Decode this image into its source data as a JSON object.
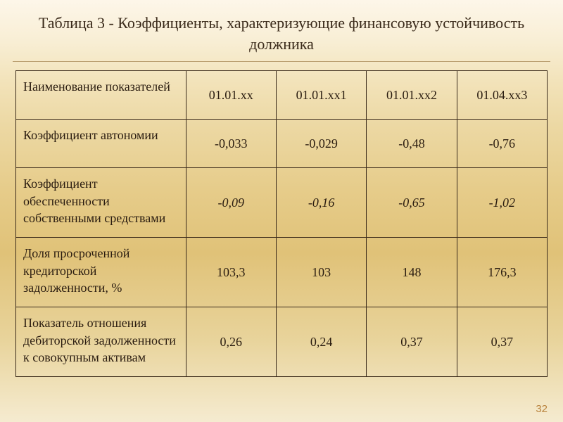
{
  "title": "Таблица 3 - Коэффициенты, характеризующие финансовую устойчивость должника",
  "page_number": "32",
  "table": {
    "columns": [
      "Наименование показателей",
      "01.01.хх",
      "01.01.хх1",
      "01.01.хх2",
      "01.04.хх3"
    ],
    "rows": [
      {
        "name": "Коэффициент автономии",
        "values": [
          "-0,033",
          "-0,029",
          "-0,48",
          "-0,76"
        ],
        "italic": false
      },
      {
        "name": "Коэффициент обеспеченности собственными средствами",
        "values": [
          "-0,09",
          "-0,16",
          "-0,65",
          "-1,02"
        ],
        "italic": true
      },
      {
        "name": "Доля просроченной кредиторской задолженности, %",
        "values": [
          "103,3",
          "103",
          "148",
          "176,3"
        ],
        "italic": false
      },
      {
        "name": "Показатель отношения дебиторской задолженности  к совокупным активам",
        "values": [
          "0,26",
          "0,24",
          "0,37",
          "0,37"
        ],
        "italic": false
      }
    ]
  },
  "style": {
    "title_fontsize": 22,
    "cell_fontsize": 18,
    "text_color": "#2a1c10",
    "border_color": "#3a2a1a",
    "page_num_color": "#b9833e",
    "background_gradient": [
      "#fdf6e9",
      "#f8eed4",
      "#f2e2b8",
      "#ecd8a3",
      "#e6cc8a",
      "#e0c278",
      "#e8d39a",
      "#f5ebd0"
    ]
  }
}
